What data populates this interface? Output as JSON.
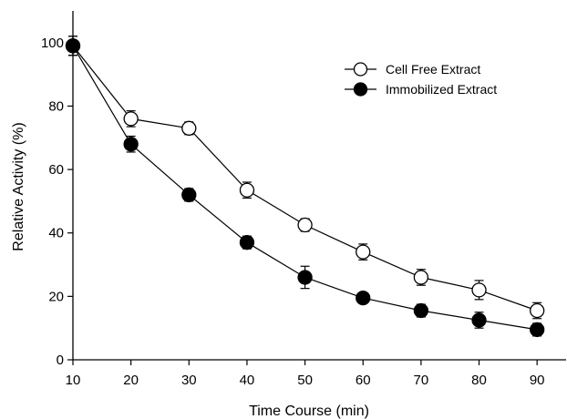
{
  "chart_data": {
    "type": "line",
    "title": "",
    "xlabel": "Time Course (min)",
    "ylabel": "Relative Activity (%)",
    "xlim": [
      10,
      95
    ],
    "ylim": [
      0,
      110
    ],
    "xticks": [
      10,
      20,
      30,
      40,
      50,
      60,
      70,
      80,
      90
    ],
    "yticks": [
      0,
      20,
      40,
      60,
      80,
      100
    ],
    "legend_position": "top-right",
    "grid": false,
    "x": [
      10,
      20,
      30,
      40,
      50,
      60,
      70,
      80,
      90
    ],
    "series": [
      {
        "name": "Cell Free Extract",
        "marker": "open-circle",
        "values": [
          99,
          76,
          73,
          53.5,
          42.5,
          34,
          26,
          22,
          15.5
        ],
        "errors": [
          3,
          2.5,
          2,
          2.5,
          2,
          2.5,
          2.5,
          3,
          2.5
        ]
      },
      {
        "name": "Immobilized Extract",
        "marker": "filled-circle",
        "values": [
          99,
          68,
          52,
          37,
          26,
          19.5,
          15.5,
          12.5,
          9.5
        ],
        "errors": [
          3,
          2.5,
          2,
          2,
          3.5,
          1.5,
          2,
          2.5,
          2
        ]
      }
    ],
    "colors": {
      "line": "#000000",
      "filled_marker": "#000000",
      "open_marker_fill": "#ffffff"
    }
  }
}
